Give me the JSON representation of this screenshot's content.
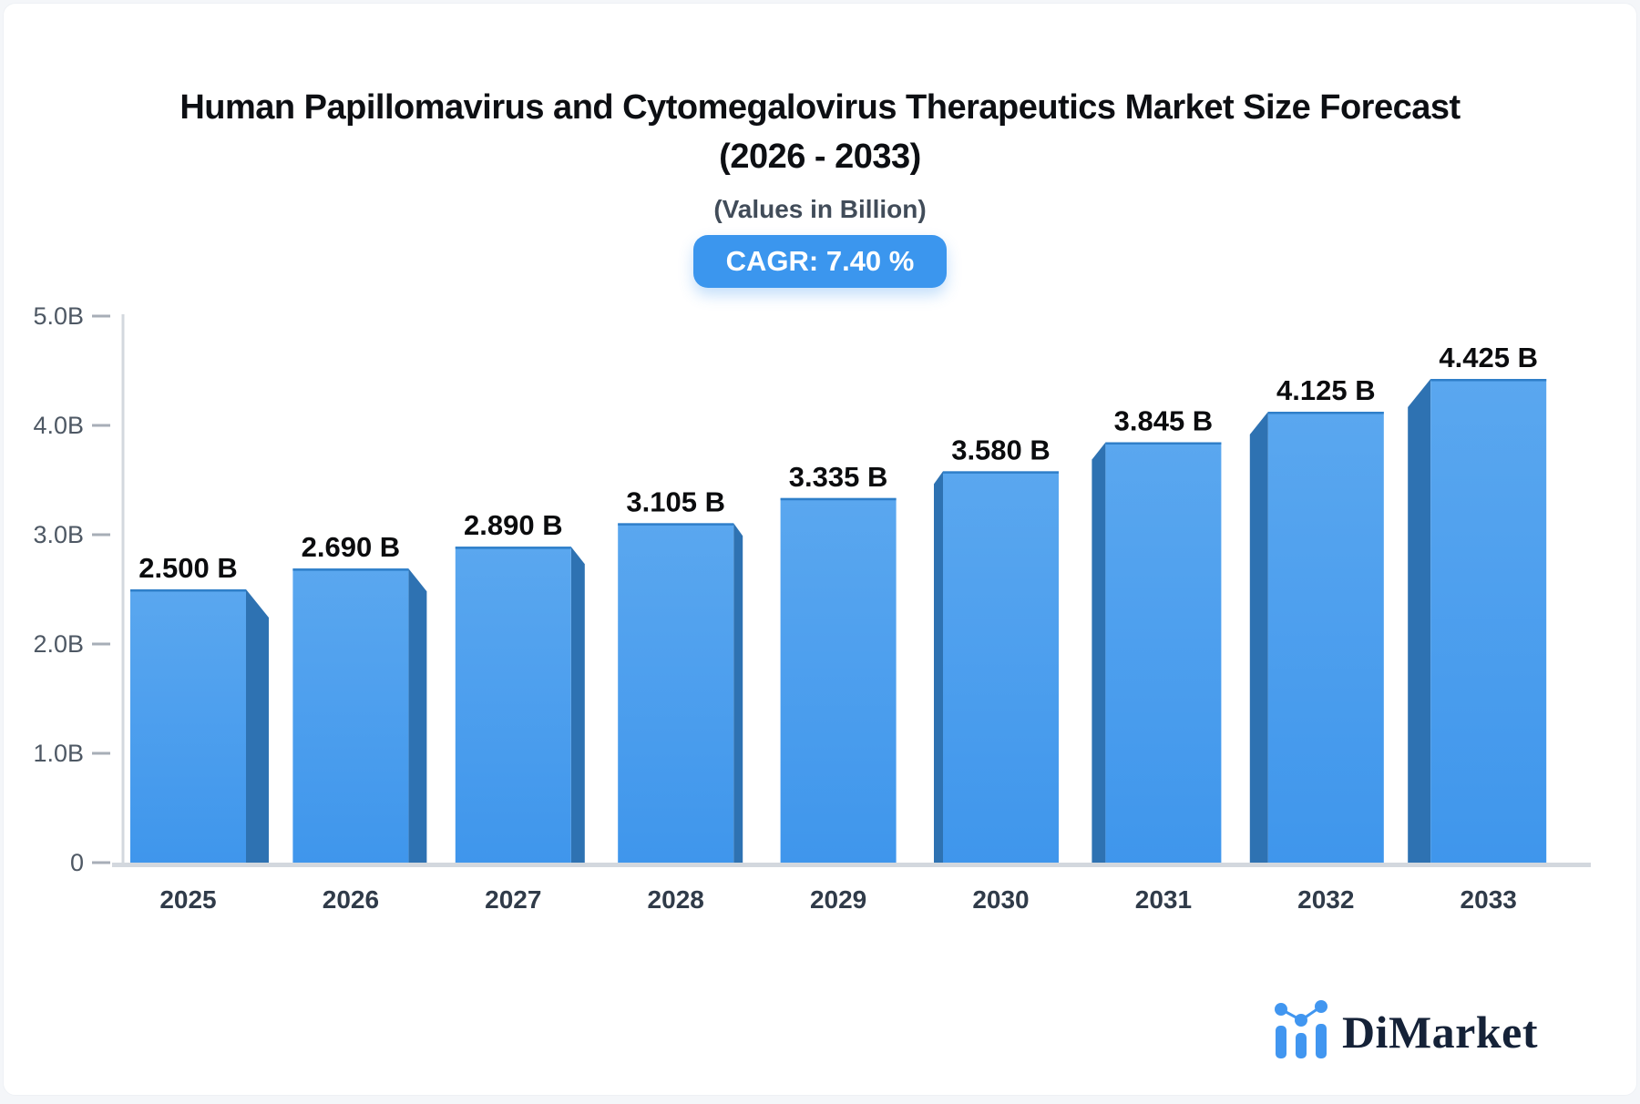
{
  "header": {
    "title_line1": "Human Papillomavirus and Cytomegalovirus Therapeutics Market Size Forecast",
    "title_line2": "(2026 - 2033)",
    "subtitle": "(Values in Billion)",
    "cagr_label": "CAGR: 7.40 %",
    "badge_color": "#3b96ee"
  },
  "chart_data": {
    "type": "bar",
    "title": "Human Papillomavirus and Cytomegalovirus Therapeutics Market Size Forecast (2026 - 2033)",
    "subtitle": "(Values in Billion)",
    "annotation": "CAGR: 7.40 %",
    "categories": [
      "2025",
      "2026",
      "2027",
      "2028",
      "2029",
      "2030",
      "2031",
      "2032",
      "2033"
    ],
    "values": [
      2.5,
      2.69,
      2.89,
      3.105,
      3.335,
      3.58,
      3.845,
      4.125,
      4.425
    ],
    "value_labels": [
      "2.500 B",
      "2.690 B",
      "2.890 B",
      "3.105 B",
      "3.335 B",
      "3.580 B",
      "3.845 B",
      "4.125 B",
      "4.425 B"
    ],
    "xlabel": "",
    "ylabel": "",
    "ylim": [
      0,
      5
    ],
    "yticks": [
      {
        "label": "5.0B",
        "value": 5.0
      },
      {
        "label": "4.0B",
        "value": 4.0
      },
      {
        "label": "3.0B",
        "value": 3.0
      },
      {
        "label": "2.0B",
        "value": 2.0
      },
      {
        "label": "1.0B",
        "value": 1.0
      },
      {
        "label": "0",
        "value": 0.0
      }
    ],
    "grid": false,
    "legend": "none",
    "style": "3d-extruded-bars",
    "colors": {
      "bar_face_top": "#5aa7ef",
      "bar_face_bottom": "#3f96ec",
      "bar_side": "#2e72b2",
      "bar_top_edge": "#2f7fc9",
      "axis_line": "#d3d8de",
      "tick_mark": "#a7aeb7",
      "tick_label": "#4e5864",
      "year_label": "#303b49",
      "value_label": "#0b0c0e"
    }
  },
  "footer": {
    "brand": "DiMarket",
    "logo_icon": "mini-bar-chart-icon",
    "brand_color": "#152238",
    "icon_color": "#4196f0"
  }
}
